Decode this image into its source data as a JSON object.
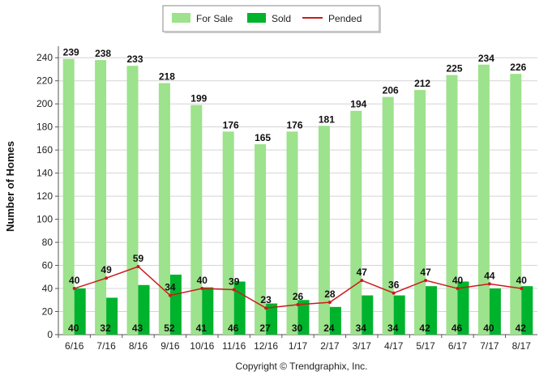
{
  "chart_data": {
    "type": "bar",
    "categories": [
      "6/16",
      "7/16",
      "8/16",
      "9/16",
      "10/16",
      "11/16",
      "12/16",
      "1/17",
      "2/17",
      "3/17",
      "4/17",
      "5/17",
      "6/17",
      "7/17",
      "8/17"
    ],
    "series": [
      {
        "name": "For Sale",
        "type": "bar",
        "color": "#9de28c",
        "values": [
          239,
          238,
          233,
          218,
          199,
          176,
          165,
          176,
          181,
          194,
          206,
          212,
          225,
          234,
          226
        ]
      },
      {
        "name": "Sold",
        "type": "bar",
        "color": "#00b32c",
        "values": [
          40,
          32,
          43,
          52,
          41,
          46,
          27,
          30,
          24,
          34,
          34,
          42,
          46,
          40,
          42
        ]
      },
      {
        "name": "Pended",
        "type": "line",
        "color": "#cc1a1a",
        "values": [
          40,
          49,
          59,
          34,
          40,
          39,
          23,
          26,
          28,
          47,
          36,
          47,
          40,
          44,
          40
        ]
      }
    ],
    "ylabel": "Number of Homes",
    "xlabel": "",
    "ylim": [
      0,
      240
    ],
    "yticks": [
      0,
      20,
      40,
      60,
      80,
      100,
      120,
      140,
      160,
      180,
      200,
      220,
      240
    ],
    "grid": true,
    "legend_position": "top-center"
  },
  "footer": {
    "copyright": "Copyright © Trendgraphix, Inc."
  }
}
